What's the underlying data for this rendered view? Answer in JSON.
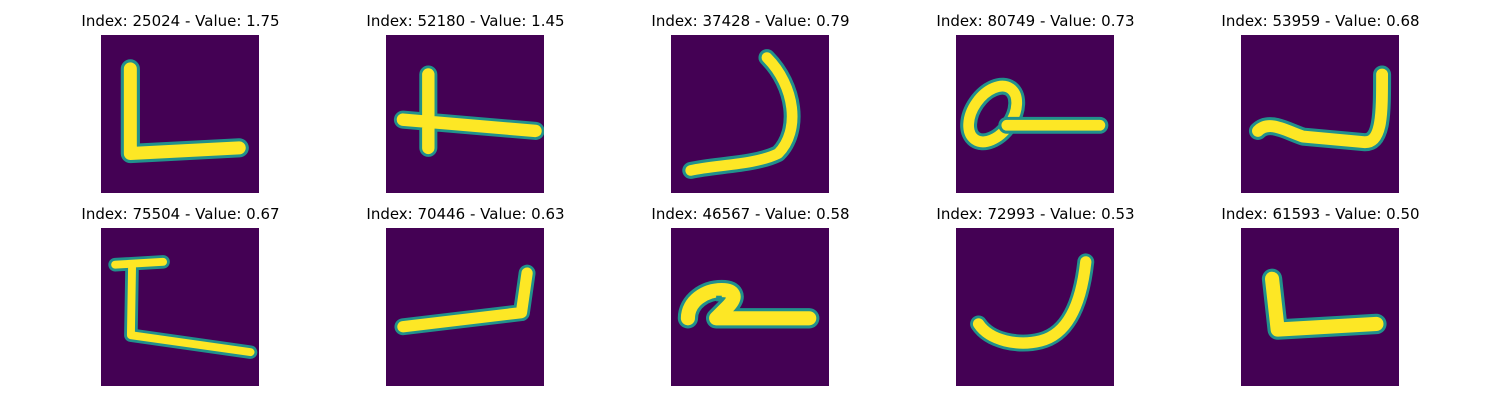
{
  "colors": {
    "background": "#440154",
    "stroke": "#fde725",
    "mid": "#21918c"
  },
  "panels": [
    {
      "title": "Index: 25024 - Value: 1.75",
      "glyph": "L-shape"
    },
    {
      "title": "Index: 52180 - Value: 1.45",
      "glyph": "cross-dash"
    },
    {
      "title": "Index: 37428 - Value: 0.79",
      "glyph": "hook"
    },
    {
      "title": "Index: 80749 - Value: 0.73",
      "glyph": "loop-dash"
    },
    {
      "title": "Index: 53959 - Value: 0.68",
      "glyph": "cup-right"
    },
    {
      "title": "Index: 75504 - Value: 0.67",
      "glyph": "bracket-L"
    },
    {
      "title": "Index: 70446 - Value: 0.63",
      "glyph": "slant-cup"
    },
    {
      "title": "Index: 46567 - Value: 0.58",
      "glyph": "blob-dash"
    },
    {
      "title": "Index: 72993 - Value: 0.53",
      "glyph": "u-curve"
    },
    {
      "title": "Index: 61593 - Value: 0.50",
      "glyph": "thick-L"
    }
  ]
}
